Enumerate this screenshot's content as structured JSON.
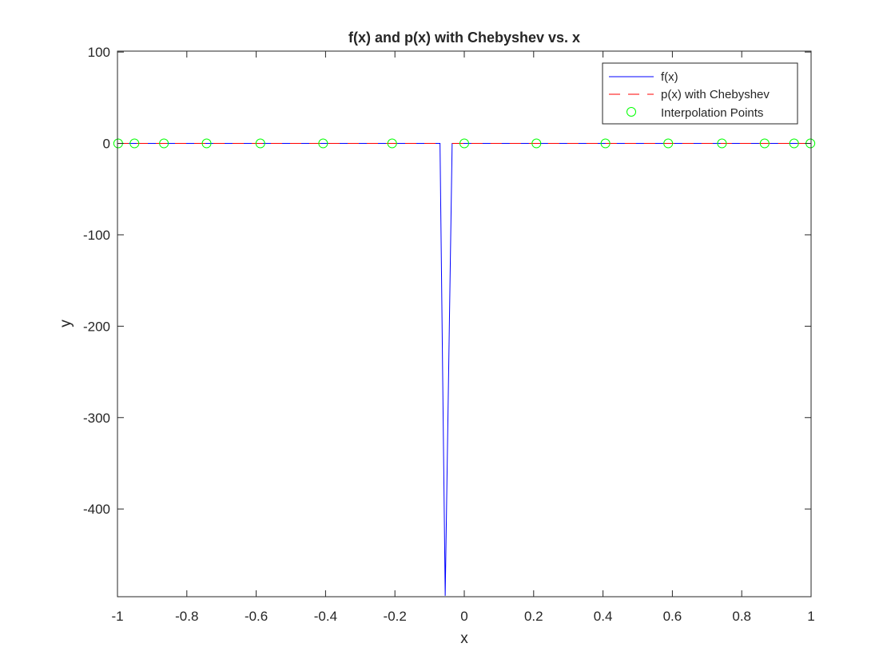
{
  "chart_data": {
    "type": "line",
    "title": "f(x) and p(x) with Chebyshev vs. x",
    "xlabel": "x",
    "ylabel": "y",
    "xlim": [
      -1,
      1
    ],
    "ylim": [
      -496,
      101
    ],
    "xticks": [
      -1,
      -0.8,
      -0.6,
      -0.4,
      -0.2,
      0,
      0.2,
      0.4,
      0.6,
      0.8,
      1
    ],
    "xtick_labels": [
      "-1",
      "-0.8",
      "-0.6",
      "-0.4",
      "-0.2",
      "0",
      "0.2",
      "0.4",
      "0.6",
      "0.8",
      "1"
    ],
    "yticks": [
      100,
      0,
      -100,
      -200,
      -300,
      -400
    ],
    "ytick_labels": [
      "100",
      "0",
      "-100",
      "-200",
      "-300",
      "-400"
    ],
    "grid": false,
    "legend_position": "top-right",
    "series": [
      {
        "name": "f(x)",
        "style": "solid",
        "color": "#0000ff",
        "x": [
          -1,
          -0.08,
          -0.07,
          -0.055,
          -0.035,
          -0.03,
          1
        ],
        "y": [
          0,
          0,
          0,
          -495,
          0,
          0,
          0
        ]
      },
      {
        "name": "p(x) with Chebyshev",
        "style": "dashed",
        "color": "#ff0000",
        "x": [
          -1,
          -0.08,
          -0.075,
          -0.04,
          -0.035,
          1
        ],
        "y": [
          0,
          0,
          null,
          null,
          0,
          0
        ]
      },
      {
        "name": "Interpolation Points",
        "style": "markers",
        "marker": "circle",
        "color": "#00ff00",
        "x": [
          -0.998,
          -0.951,
          -0.866,
          -0.743,
          -0.588,
          -0.407,
          -0.208,
          0,
          0.208,
          0.407,
          0.588,
          0.743,
          0.866,
          0.951,
          0.998
        ],
        "y": [
          0,
          0,
          0,
          0,
          0,
          0,
          0,
          0,
          0,
          0,
          0,
          0,
          0,
          0,
          0
        ]
      }
    ]
  }
}
